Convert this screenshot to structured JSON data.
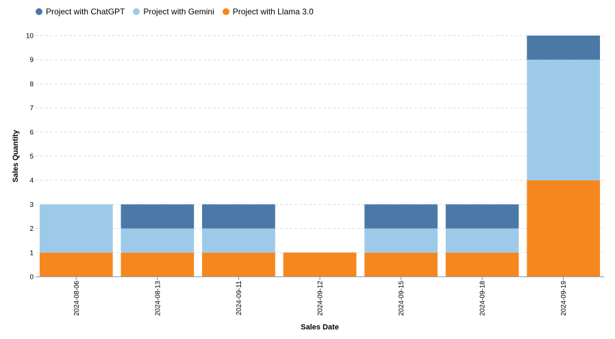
{
  "chart_data": {
    "type": "bar",
    "stacked": true,
    "categories": [
      "2024-08-06",
      "2024-08-13",
      "2024-09-11",
      "2024-09-12",
      "2024-09-15",
      "2024-09-18",
      "2024-09-19"
    ],
    "series": [
      {
        "name": "Project with Llama 3.0",
        "color": "#f5871f",
        "values": [
          1,
          1,
          1,
          1,
          1,
          1,
          4
        ]
      },
      {
        "name": "Project with Gemini",
        "color": "#9ecae9",
        "values": [
          2,
          1,
          1,
          0,
          1,
          1,
          5
        ]
      },
      {
        "name": "Project with ChatGPT",
        "color": "#4c78a8",
        "values": [
          0,
          1,
          1,
          0,
          1,
          1,
          1
        ]
      }
    ],
    "legend_order": [
      2,
      1,
      0
    ],
    "xlabel": "Sales Date",
    "ylabel": "Sales Quantity",
    "ylim": [
      0,
      10
    ],
    "yticks": [
      0,
      1,
      2,
      3,
      4,
      5,
      6,
      7,
      8,
      9,
      10
    ],
    "grid": true,
    "legend_position": "top-left"
  }
}
